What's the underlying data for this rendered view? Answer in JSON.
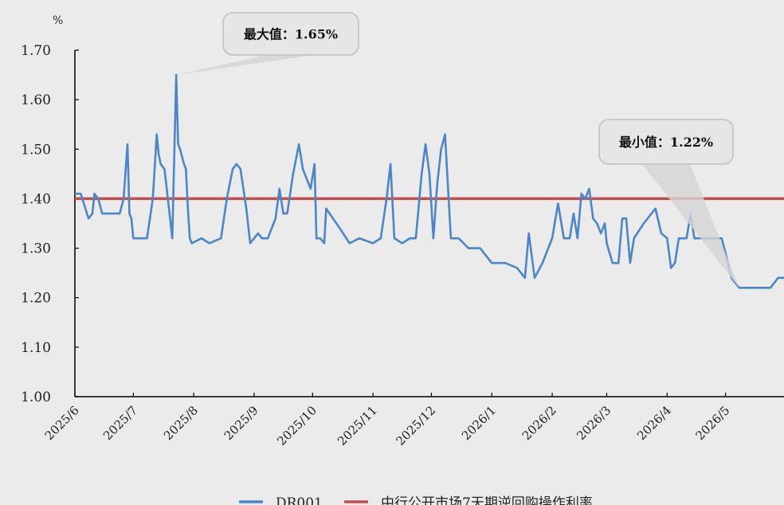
{
  "chart_data": {
    "type": "line",
    "unit_label": "%",
    "ylim": [
      1.0,
      1.7
    ],
    "yticks": [
      "1.00",
      "1.10",
      "1.20",
      "1.30",
      "1.40",
      "1.50",
      "1.60",
      "1.70"
    ],
    "xlim": [
      "2025-06-01",
      "2026-05-31"
    ],
    "xticks": [
      {
        "label": "2025/6",
        "date": "2025-06-01"
      },
      {
        "label": "2025/7",
        "date": "2025-07-01"
      },
      {
        "label": "2025/8",
        "date": "2025-08-01"
      },
      {
        "label": "2025/9",
        "date": "2025-09-01"
      },
      {
        "label": "2025/10",
        "date": "2025-10-01"
      },
      {
        "label": "2025/11",
        "date": "2025-11-01"
      },
      {
        "label": "2025/12",
        "date": "2025-12-01"
      },
      {
        "label": "2026/1",
        "date": "2026-01-01"
      },
      {
        "label": "2026/2",
        "date": "2026-02-01"
      },
      {
        "label": "2026/3",
        "date": "2026-03-01"
      },
      {
        "label": "2026/4",
        "date": "2026-04-01"
      },
      {
        "label": "2026/5",
        "date": "2026-05-01"
      }
    ],
    "grid": false,
    "legend_position": "bottom",
    "series": [
      {
        "name": "DR001",
        "color": "#4a86c8",
        "points": [
          [
            "2025-06-01",
            1.41
          ],
          [
            "2025-06-04",
            1.41
          ],
          [
            "2025-06-08",
            1.36
          ],
          [
            "2025-06-10",
            1.37
          ],
          [
            "2025-06-11",
            1.41
          ],
          [
            "2025-06-13",
            1.4
          ],
          [
            "2025-06-15",
            1.37
          ],
          [
            "2025-06-18",
            1.37
          ],
          [
            "2025-06-21",
            1.37
          ],
          [
            "2025-06-24",
            1.37
          ],
          [
            "2025-06-26",
            1.4
          ],
          [
            "2025-06-28",
            1.51
          ],
          [
            "2025-06-29",
            1.37
          ],
          [
            "2025-06-30",
            1.36
          ],
          [
            "2025-07-01",
            1.32
          ],
          [
            "2025-07-04",
            1.32
          ],
          [
            "2025-07-08",
            1.32
          ],
          [
            "2025-07-11",
            1.4
          ],
          [
            "2025-07-13",
            1.53
          ],
          [
            "2025-07-14",
            1.49
          ],
          [
            "2025-07-15",
            1.47
          ],
          [
            "2025-07-17",
            1.46
          ],
          [
            "2025-07-19",
            1.39
          ],
          [
            "2025-07-21",
            1.32
          ],
          [
            "2025-07-23",
            1.65
          ],
          [
            "2025-07-24",
            1.51
          ],
          [
            "2025-07-25",
            1.5
          ],
          [
            "2025-07-27",
            1.47
          ],
          [
            "2025-07-28",
            1.46
          ],
          [
            "2025-07-29",
            1.38
          ],
          [
            "2025-07-30",
            1.32
          ],
          [
            "2025-07-31",
            1.31
          ],
          [
            "2025-08-05",
            1.32
          ],
          [
            "2025-08-09",
            1.31
          ],
          [
            "2025-08-15",
            1.32
          ],
          [
            "2025-08-18",
            1.4
          ],
          [
            "2025-08-21",
            1.46
          ],
          [
            "2025-08-23",
            1.47
          ],
          [
            "2025-08-25",
            1.46
          ],
          [
            "2025-08-28",
            1.38
          ],
          [
            "2025-08-30",
            1.31
          ],
          [
            "2025-09-01",
            1.32
          ],
          [
            "2025-09-03",
            1.33
          ],
          [
            "2025-09-05",
            1.32
          ],
          [
            "2025-09-08",
            1.32
          ],
          [
            "2025-09-12",
            1.36
          ],
          [
            "2025-09-14",
            1.42
          ],
          [
            "2025-09-16",
            1.37
          ],
          [
            "2025-09-18",
            1.37
          ],
          [
            "2025-09-21",
            1.45
          ],
          [
            "2025-09-24",
            1.51
          ],
          [
            "2025-09-26",
            1.46
          ],
          [
            "2025-09-28",
            1.44
          ],
          [
            "2025-09-30",
            1.42
          ],
          [
            "2025-10-02",
            1.47
          ],
          [
            "2025-10-03",
            1.32
          ],
          [
            "2025-10-05",
            1.32
          ],
          [
            "2025-10-07",
            1.31
          ],
          [
            "2025-10-08",
            1.38
          ],
          [
            "2025-10-15",
            1.34
          ],
          [
            "2025-10-20",
            1.31
          ],
          [
            "2025-10-25",
            1.32
          ],
          [
            "2025-11-01",
            1.31
          ],
          [
            "2025-11-05",
            1.32
          ],
          [
            "2025-11-08",
            1.4
          ],
          [
            "2025-11-10",
            1.47
          ],
          [
            "2025-11-12",
            1.32
          ],
          [
            "2025-11-16",
            1.31
          ],
          [
            "2025-11-20",
            1.32
          ],
          [
            "2025-11-23",
            1.32
          ],
          [
            "2025-11-26",
            1.45
          ],
          [
            "2025-11-28",
            1.51
          ],
          [
            "2025-11-30",
            1.45
          ],
          [
            "2025-12-02",
            1.32
          ],
          [
            "2025-12-04",
            1.43
          ],
          [
            "2025-12-06",
            1.5
          ],
          [
            "2025-12-08",
            1.53
          ],
          [
            "2025-12-11",
            1.32
          ],
          [
            "2025-12-15",
            1.32
          ],
          [
            "2025-12-20",
            1.3
          ],
          [
            "2025-12-26",
            1.3
          ],
          [
            "2026-01-01",
            1.27
          ],
          [
            "2026-01-08",
            1.27
          ],
          [
            "2026-01-14",
            1.26
          ],
          [
            "2026-01-18",
            1.24
          ],
          [
            "2026-01-20",
            1.33
          ],
          [
            "2026-01-23",
            1.24
          ],
          [
            "2026-01-27",
            1.27
          ],
          [
            "2026-02-01",
            1.32
          ],
          [
            "2026-02-04",
            1.39
          ],
          [
            "2026-02-07",
            1.32
          ],
          [
            "2026-02-10",
            1.32
          ],
          [
            "2026-02-12",
            1.37
          ],
          [
            "2026-02-14",
            1.32
          ],
          [
            "2026-02-16",
            1.41
          ],
          [
            "2026-02-18",
            1.4
          ],
          [
            "2026-02-20",
            1.42
          ],
          [
            "2026-02-22",
            1.36
          ],
          [
            "2026-02-24",
            1.35
          ],
          [
            "2026-02-26",
            1.33
          ],
          [
            "2026-02-28",
            1.35
          ],
          [
            "2026-03-01",
            1.31
          ],
          [
            "2026-03-04",
            1.27
          ],
          [
            "2026-03-07",
            1.27
          ],
          [
            "2026-03-09",
            1.36
          ],
          [
            "2026-03-11",
            1.36
          ],
          [
            "2026-03-13",
            1.27
          ],
          [
            "2026-03-15",
            1.32
          ],
          [
            "2026-03-20",
            1.35
          ],
          [
            "2026-03-26",
            1.38
          ],
          [
            "2026-03-29",
            1.33
          ],
          [
            "2026-04-01",
            1.32
          ],
          [
            "2026-04-03",
            1.26
          ],
          [
            "2026-04-05",
            1.27
          ],
          [
            "2026-04-07",
            1.32
          ],
          [
            "2026-04-11",
            1.32
          ],
          [
            "2026-04-13",
            1.37
          ],
          [
            "2026-04-15",
            1.32
          ],
          [
            "2026-04-20",
            1.32
          ],
          [
            "2026-04-25",
            1.32
          ],
          [
            "2026-04-29",
            1.32
          ],
          [
            "2026-05-01",
            1.29
          ],
          [
            "2026-05-04",
            1.24
          ],
          [
            "2026-05-08",
            1.22
          ],
          [
            "2026-05-12",
            1.22
          ],
          [
            "2026-05-16",
            1.22
          ],
          [
            "2026-05-20",
            1.22
          ],
          [
            "2026-05-24",
            1.22
          ],
          [
            "2026-05-28",
            1.24
          ],
          [
            "2026-05-31",
            1.24
          ]
        ]
      },
      {
        "name": "中行公开市场7天期逆回购操作利率",
        "color": "#c0504d",
        "points": [
          [
            "2025-06-01",
            1.4
          ],
          [
            "2026-05-31",
            1.4
          ]
        ]
      }
    ],
    "annotations": [
      {
        "text": "最大值：1.65%",
        "x": "2025-07-23",
        "y": 1.65
      },
      {
        "text": "最小值：1.22%",
        "x": "2026-05-08",
        "y": 1.22
      }
    ]
  }
}
